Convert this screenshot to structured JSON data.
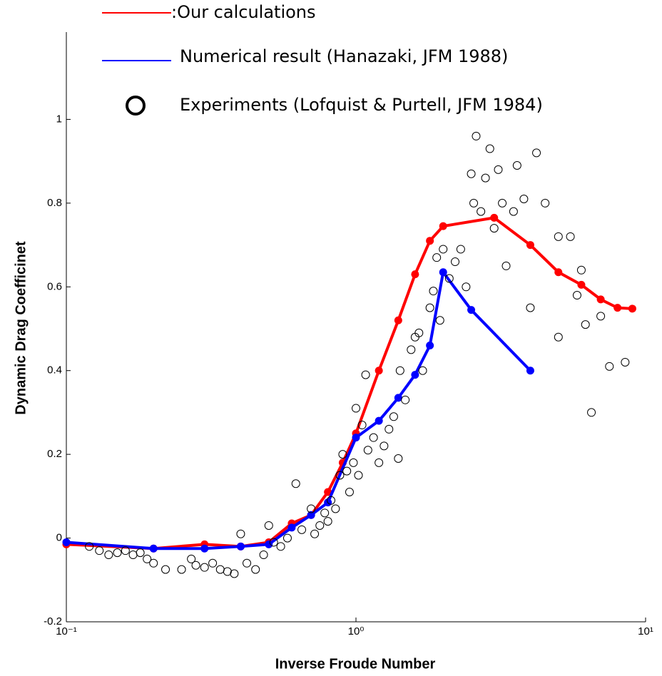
{
  "chart_data": {
    "type": "line",
    "xlabel": "Inverse Froude Number",
    "ylabel": "Dynamic Drag Coefficinet",
    "xscale": "log",
    "xlim": [
      0.1,
      10
    ],
    "xticks": [
      {
        "value": 0.1,
        "label": "10⁻¹"
      },
      {
        "value": 1,
        "label": "10⁰"
      },
      {
        "value": 10,
        "label": "10¹"
      }
    ],
    "ylim": [
      -0.2,
      1.2
    ],
    "yticks": [
      -0.2,
      0,
      0.2,
      0.4,
      0.6,
      0.8,
      1
    ],
    "series": [
      {
        "name": ":Our calculations",
        "color": "#ff0000",
        "mode": "line",
        "x": [
          0.1,
          0.2,
          0.3,
          0.4,
          0.5,
          0.6,
          0.7,
          0.8,
          0.9,
          1.0,
          1.2,
          1.4,
          1.6,
          1.8,
          2.0,
          3.0,
          4.0,
          5.0,
          6.0,
          7.0,
          8.0,
          9.0
        ],
        "values": [
          -0.015,
          -0.025,
          -0.015,
          -0.02,
          -0.01,
          0.035,
          0.055,
          0.11,
          0.18,
          0.25,
          0.4,
          0.52,
          0.63,
          0.71,
          0.745,
          0.765,
          0.7,
          0.635,
          0.605,
          0.57,
          0.55,
          0.548
        ]
      },
      {
        "name": "Numerical result (Hanazaki, JFM 1988)",
        "color": "#0000ff",
        "mode": "line",
        "x": [
          0.1,
          0.2,
          0.3,
          0.4,
          0.5,
          0.6,
          0.7,
          0.8,
          1.0,
          1.2,
          1.4,
          1.6,
          1.8,
          2.0,
          2.5,
          4.0
        ],
        "values": [
          -0.01,
          -0.025,
          -0.025,
          -0.02,
          -0.015,
          0.025,
          0.055,
          0.085,
          0.24,
          0.28,
          0.335,
          0.39,
          0.46,
          0.635,
          0.545,
          0.4
        ]
      },
      {
        "name": "Experiments (Lofquist & Purtell, JFM 1984)",
        "color": "#000000",
        "mode": "markers",
        "x": [
          0.12,
          0.13,
          0.14,
          0.15,
          0.16,
          0.17,
          0.18,
          0.19,
          0.2,
          0.22,
          0.25,
          0.27,
          0.28,
          0.3,
          0.32,
          0.34,
          0.36,
          0.38,
          0.4,
          0.42,
          0.45,
          0.48,
          0.5,
          0.52,
          0.55,
          0.58,
          0.62,
          0.65,
          0.7,
          0.72,
          0.75,
          0.78,
          0.8,
          0.82,
          0.85,
          0.88,
          0.9,
          0.93,
          0.95,
          0.98,
          1.0,
          1.02,
          1.05,
          1.08,
          1.1,
          1.15,
          1.2,
          1.25,
          1.3,
          1.35,
          1.4,
          1.42,
          1.48,
          1.55,
          1.6,
          1.65,
          1.7,
          1.8,
          1.85,
          1.9,
          1.95,
          2.0,
          2.1,
          2.2,
          2.3,
          2.4,
          2.5,
          2.55,
          2.6,
          2.7,
          2.8,
          2.9,
          3.0,
          3.1,
          3.2,
          3.3,
          3.5,
          3.6,
          3.8,
          4.0,
          4.2,
          4.5,
          5.0,
          5.0,
          5.5,
          5.8,
          6.0,
          6.2,
          6.5,
          7.0,
          7.5,
          8.5
        ],
        "values": [
          -0.02,
          -0.03,
          -0.04,
          -0.035,
          -0.03,
          -0.04,
          -0.035,
          -0.05,
          -0.06,
          -0.075,
          -0.075,
          -0.05,
          -0.065,
          -0.07,
          -0.06,
          -0.075,
          -0.08,
          -0.085,
          0.01,
          -0.06,
          -0.075,
          -0.04,
          0.03,
          -0.01,
          -0.02,
          0.0,
          0.13,
          0.02,
          0.07,
          0.01,
          0.03,
          0.06,
          0.04,
          0.09,
          0.07,
          0.15,
          0.2,
          0.16,
          0.11,
          0.18,
          0.31,
          0.15,
          0.27,
          0.39,
          0.21,
          0.24,
          0.18,
          0.22,
          0.26,
          0.29,
          0.19,
          0.4,
          0.33,
          0.45,
          0.48,
          0.49,
          0.4,
          0.55,
          0.59,
          0.67,
          0.52,
          0.69,
          0.62,
          0.66,
          0.69,
          0.6,
          0.87,
          0.8,
          0.96,
          0.78,
          0.86,
          0.93,
          0.74,
          0.88,
          0.8,
          0.65,
          0.78,
          0.89,
          0.81,
          0.55,
          0.92,
          0.8,
          0.72,
          0.48,
          0.72,
          0.58,
          0.64,
          0.51,
          0.3,
          0.53,
          0.41,
          0.42
        ]
      }
    ]
  }
}
